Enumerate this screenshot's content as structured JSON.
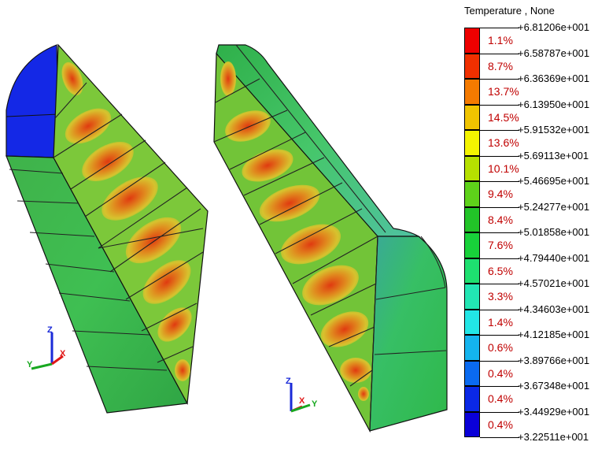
{
  "legend": {
    "title": "Temperature , None",
    "values": [
      "+6.81206e+001",
      "+6.58787e+001",
      "+6.36369e+001",
      "+6.13950e+001",
      "+5.91532e+001",
      "+5.69113e+001",
      "+5.46695e+001",
      "+5.24277e+001",
      "+5.01858e+001",
      "+4.79440e+001",
      "+4.57021e+001",
      "+4.34603e+001",
      "+4.12185e+001",
      "+3.89766e+001",
      "+3.67348e+001",
      "+3.44929e+001",
      "+3.22511e+001"
    ],
    "bands": [
      {
        "percent": "1.1%",
        "color": "#ee0000"
      },
      {
        "percent": "8.7%",
        "color": "#f03000"
      },
      {
        "percent": "13.7%",
        "color": "#f47a00"
      },
      {
        "percent": "14.5%",
        "color": "#f0c400"
      },
      {
        "percent": "13.6%",
        "color": "#f4f400"
      },
      {
        "percent": "10.1%",
        "color": "#b6e000"
      },
      {
        "percent": "9.4%",
        "color": "#5ed21a"
      },
      {
        "percent": "8.4%",
        "color": "#22c428"
      },
      {
        "percent": "7.6%",
        "color": "#18d23a"
      },
      {
        "percent": "6.5%",
        "color": "#1ee070"
      },
      {
        "percent": "3.3%",
        "color": "#22e6b4"
      },
      {
        "percent": "1.4%",
        "color": "#22e6e6"
      },
      {
        "percent": "0.6%",
        "color": "#14b4ee"
      },
      {
        "percent": "0.4%",
        "color": "#0a6af0"
      },
      {
        "percent": "0.4%",
        "color": "#0a28e6"
      },
      {
        "percent": "0.4%",
        "color": "#0a00d8"
      }
    ]
  },
  "triads": [
    {
      "up": "Z",
      "left": "Y",
      "right": "X"
    },
    {
      "up": "Z",
      "left": "X",
      "right": "Y"
    }
  ]
}
